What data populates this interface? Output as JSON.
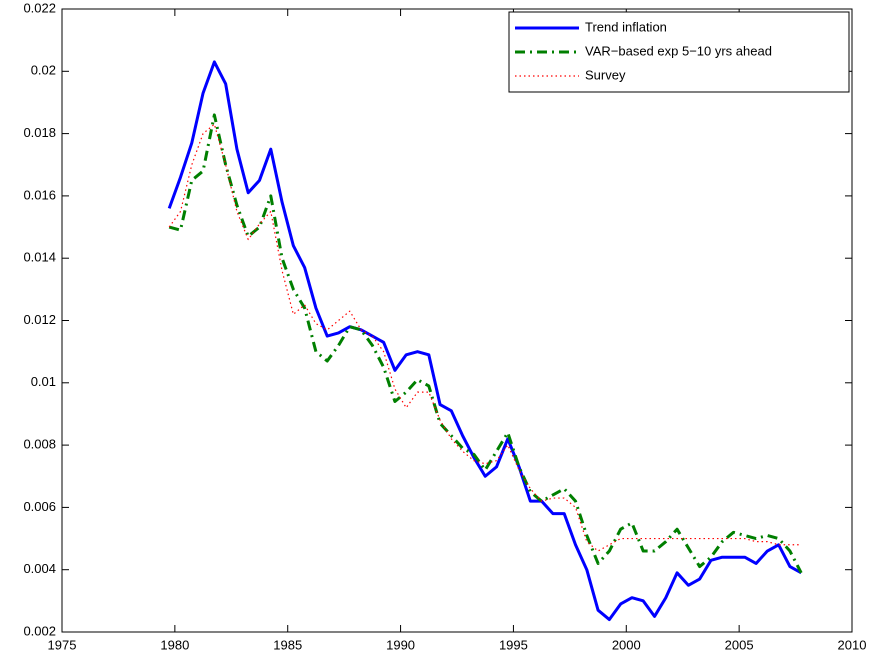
{
  "chart_data": {
    "type": "line",
    "x": [
      1979.75,
      1980.25,
      1980.75,
      1981.25,
      1981.75,
      1982.25,
      1982.75,
      1983.25,
      1983.75,
      1984.25,
      1984.75,
      1985.25,
      1985.75,
      1986.25,
      1986.75,
      1987.25,
      1987.75,
      1988.25,
      1988.75,
      1989.25,
      1989.75,
      1990.25,
      1990.75,
      1991.25,
      1991.75,
      1992.25,
      1992.75,
      1993.25,
      1993.75,
      1994.25,
      1994.75,
      1995.25,
      1995.75,
      1996.25,
      1996.75,
      1997.25,
      1997.75,
      1998.25,
      1998.75,
      1999.25,
      1999.75,
      2000.25,
      2000.75,
      2001.25,
      2001.75,
      2002.25,
      2002.75,
      2003.25,
      2003.75,
      2004.25,
      2004.75,
      2005.25,
      2005.75,
      2006.25,
      2006.75,
      2007.25,
      2007.75
    ],
    "series": [
      {
        "name": "Trend inflation",
        "color": "#0000ff",
        "dash": "solid",
        "values": [
          0.0156,
          0.0166,
          0.0177,
          0.0193,
          0.0203,
          0.0196,
          0.0175,
          0.0161,
          0.0165,
          0.0175,
          0.0158,
          0.0144,
          0.0137,
          0.0124,
          0.0115,
          0.0116,
          0.0118,
          0.0117,
          0.0115,
          0.0113,
          0.0104,
          0.0109,
          0.011,
          0.0109,
          0.0093,
          0.0091,
          0.0083,
          0.0076,
          0.007,
          0.0073,
          0.0082,
          0.0073,
          0.0062,
          0.0062,
          0.0058,
          0.0058,
          0.0048,
          0.004,
          0.0027,
          0.0024,
          0.0029,
          0.0031,
          0.003,
          0.0025,
          0.0031,
          0.0039,
          0.0035,
          0.0037,
          0.0043,
          0.0044,
          0.0044,
          0.0044,
          0.0042,
          0.0046,
          0.0048,
          0.0041,
          0.0039
        ]
      },
      {
        "name": "VAR−based exp 5−10 yrs ahead",
        "color": "#007f00",
        "dash": "dashdot",
        "values": [
          0.015,
          0.0149,
          0.0165,
          0.0168,
          0.0186,
          0.017,
          0.0157,
          0.0147,
          0.015,
          0.016,
          0.014,
          0.013,
          0.0124,
          0.011,
          0.0107,
          0.0112,
          0.0118,
          0.0117,
          0.0112,
          0.0105,
          0.0094,
          0.0097,
          0.0101,
          0.0099,
          0.0087,
          0.0083,
          0.0079,
          0.0077,
          0.0072,
          0.0078,
          0.0084,
          0.0073,
          0.0065,
          0.0062,
          0.0064,
          0.0066,
          0.0062,
          0.0051,
          0.0042,
          0.0046,
          0.0053,
          0.0055,
          0.0046,
          0.0046,
          0.0049,
          0.0053,
          0.0047,
          0.0041,
          0.0044,
          0.0049,
          0.0052,
          0.0051,
          0.005,
          0.0051,
          0.005,
          0.0046,
          0.0039
        ]
      },
      {
        "name": "Survey",
        "color": "#ff0000",
        "dash": "dotted",
        "values": [
          0.015,
          0.0155,
          0.017,
          0.018,
          0.0183,
          0.017,
          0.0155,
          0.0146,
          0.0151,
          0.0155,
          0.0136,
          0.0122,
          0.0125,
          0.0119,
          0.0117,
          0.012,
          0.0123,
          0.0117,
          0.0115,
          0.011,
          0.0098,
          0.0092,
          0.0097,
          0.0097,
          0.0088,
          0.0082,
          0.0078,
          0.0075,
          0.0074,
          0.0075,
          0.008,
          0.0072,
          0.0066,
          0.0062,
          0.0063,
          0.0063,
          0.006,
          0.0049,
          0.0046,
          0.0048,
          0.005,
          0.005,
          0.005,
          0.005,
          0.005,
          0.005,
          0.005,
          0.005,
          0.005,
          0.005,
          0.005,
          0.005,
          0.0049,
          0.0049,
          0.0048,
          0.0048,
          0.0048
        ]
      }
    ],
    "xlim": [
      1975,
      2010
    ],
    "xticks": [
      1975,
      1980,
      1985,
      1990,
      1995,
      2000,
      2005,
      2010
    ],
    "ylim": [
      0.002,
      0.022
    ],
    "yticks": [
      0.002,
      0.004,
      0.006,
      0.008,
      0.01,
      0.012,
      0.014,
      0.016,
      0.018,
      0.02,
      0.022
    ],
    "grid": false,
    "legend": "top-right"
  }
}
